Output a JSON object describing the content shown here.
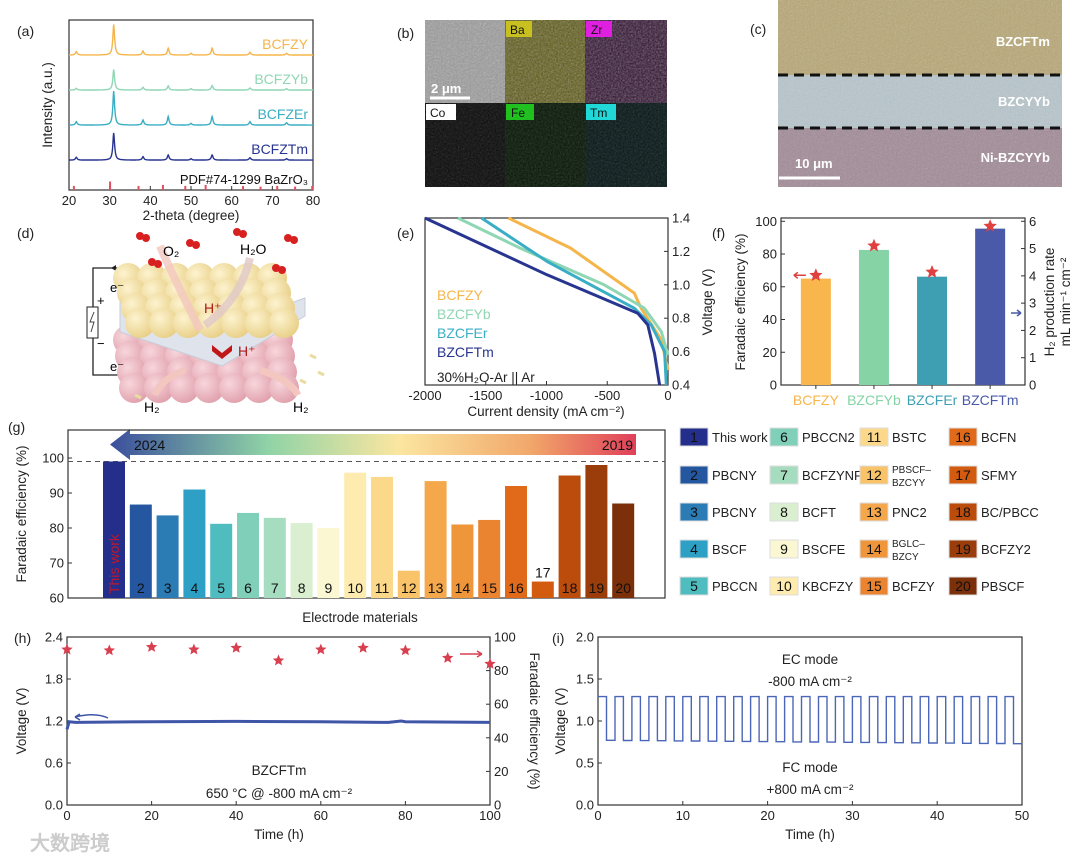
{
  "figure": {
    "panel_labels": {
      "a": "(a)",
      "b": "(b)",
      "c": "(c)",
      "d": "(d)",
      "e": "(e)",
      "f": "(f)",
      "g": "(g)",
      "h": "(h)",
      "i": "(i)"
    },
    "watermark": "大数跨境"
  },
  "panel_b": {
    "scale_bar": "2 μm",
    "maps": [
      {
        "label": "Ba",
        "color": "#c8c020"
      },
      {
        "label": "Zr",
        "color": "#e020e0"
      },
      {
        "label": "Co",
        "color": "#ffffff"
      },
      {
        "label": "Fe",
        "color": "#20c020"
      },
      {
        "label": "Tm",
        "color": "#20d8d8"
      }
    ]
  },
  "panel_c": {
    "layers": [
      "BZCFTm",
      "BZCYYb",
      "Ni-BZCYYb"
    ],
    "scale_bar": "10 μm"
  },
  "panel_d": {
    "labels": {
      "o2": "O₂",
      "h2o": "H₂O",
      "h_plus_top": "H⁺",
      "h_plus_bottom": "H⁺",
      "e_top": "e⁻",
      "e_bottom": "e⁻",
      "plus": "+",
      "minus": "−",
      "h2_left": "H₂",
      "h2_right": "H₂"
    }
  },
  "chart_data": [
    {
      "panel": "a",
      "type": "line",
      "xlabel": "2-theta (degree)",
      "ylabel": "Intensity (a.u.)",
      "xlim": [
        20,
        80
      ],
      "xticks": [
        20,
        30,
        40,
        50,
        60,
        70,
        80
      ],
      "peaks_2theta": [
        21.8,
        31.0,
        38.2,
        44.4,
        50.0,
        55.2,
        64.5,
        73.5
      ],
      "series": [
        {
          "name": "BCFZY",
          "color": "#f5b54a",
          "offset": 3.97,
          "relative_intensity": [
            0.1,
            0.9,
            0.12,
            0.2,
            0.05,
            0.2,
            0.08,
            0.05
          ]
        },
        {
          "name": "BCFZYb",
          "color": "#8fd6b4",
          "offset": 2.94,
          "relative_intensity": [
            0.05,
            0.6,
            0.08,
            0.12,
            0.04,
            0.13,
            0.06,
            0.04
          ]
        },
        {
          "name": "BCFZEr",
          "color": "#3aaec4",
          "offset": 1.91,
          "relative_intensity": [
            0.1,
            1.0,
            0.15,
            0.25,
            0.05,
            0.25,
            0.1,
            0.07
          ]
        },
        {
          "name": "BCFZTm",
          "color": "#283590",
          "offset": 0.88,
          "relative_intensity": [
            0.08,
            0.8,
            0.1,
            0.15,
            0.04,
            0.15,
            0.07,
            0.04
          ]
        }
      ],
      "reference": {
        "name": "PDF#74-1299 BaZrO₃",
        "color": "#e05060",
        "positions": [
          21.2,
          30.1,
          37.1,
          43.1,
          48.6,
          53.6,
          62.8,
          67.1,
          71.2,
          75.6,
          79.8
        ],
        "heights": [
          0.12,
          0.25,
          0.12,
          0.15,
          0.12,
          0.15,
          0.12,
          0.1,
          0.12,
          0.1,
          0.12
        ]
      }
    },
    {
      "panel": "e",
      "type": "line",
      "xlabel": "Current density (mA cm⁻²)",
      "ylabel": "Voltage (V)",
      "xlim": [
        -2000,
        0
      ],
      "ylim": [
        0.4,
        1.4
      ],
      "xticks": [
        -2000,
        -1500,
        -1000,
        -500,
        0
      ],
      "yticks": [
        0.4,
        0.6,
        0.8,
        1.0,
        1.2,
        1.4
      ],
      "annotation": "30%H₂O-Ar || Ar",
      "series": [
        {
          "name": "BCFZY",
          "color": "#f5b54a",
          "x": [
            -1314,
            -802,
            -277,
            -221,
            -55,
            0
          ],
          "y": [
            1.4,
            1.22,
            0.95,
            0.86,
            0.67,
            0.49
          ]
        },
        {
          "name": "BZCFYb",
          "color": "#8fd6b4",
          "x": [
            -1729,
            -1217,
            -526,
            -194,
            -55,
            0
          ],
          "y": [
            1.4,
            1.22,
            1.0,
            0.86,
            0.72,
            0.58
          ]
        },
        {
          "name": "BZCFEr",
          "color": "#3aaec4",
          "x": [
            -1535,
            -996,
            -277,
            -138,
            -28,
            -14
          ],
          "y": [
            1.4,
            1.14,
            0.86,
            0.76,
            0.6,
            0.4
          ]
        },
        {
          "name": "BZCFTm",
          "color": "#283590",
          "x": [
            -2000,
            -996,
            -249,
            -166,
            -111,
            -69
          ],
          "y": [
            1.4,
            1.06,
            0.83,
            0.76,
            0.59,
            0.4
          ]
        }
      ]
    },
    {
      "panel": "f",
      "type": "bar",
      "categories": [
        "BCFZY",
        "BZCFYb",
        "BZCFEr",
        "BZCFTm"
      ],
      "colors": [
        "#f8b64c",
        "#86d3a6",
        "#3e9fb3",
        "#4a5aa8"
      ],
      "bar_series": {
        "name": "H₂ production rate",
        "axis": "right",
        "values": [
          3.9,
          4.95,
          3.97,
          5.73
        ]
      },
      "star_series": {
        "name": "Faradaic efficiency",
        "axis": "left",
        "color": "#e04040",
        "values": [
          67,
          85,
          69,
          97
        ]
      },
      "ylabel": "Faradaic  efficiency (%)",
      "ylabel_right": [
        "H₂ production rate",
        "mL min⁻¹ cm⁻²"
      ],
      "ylim": [
        0,
        102
      ],
      "ylim_right": [
        0,
        6.12
      ],
      "yticks": [
        0,
        20,
        40,
        60,
        80,
        100
      ],
      "yticks_right": [
        0,
        1,
        2,
        3,
        4,
        5,
        6
      ]
    },
    {
      "panel": "g",
      "type": "bar",
      "xlabel": "Electrode materials",
      "ylabel": "Faradaic efficiency (%)",
      "ylim": [
        60,
        108
      ],
      "yticks": [
        60,
        70,
        80,
        90,
        100
      ],
      "reference_line": 99,
      "timeline": {
        "start": "2024",
        "end": "2019"
      },
      "this_work_label": "This work",
      "categories": [
        "1",
        "2",
        "3",
        "4",
        "5",
        "6",
        "7",
        "8",
        "9",
        "10",
        "11",
        "12",
        "13",
        "14",
        "15",
        "16",
        "17",
        "18",
        "19",
        "20"
      ],
      "values": [
        99,
        86.7,
        83.6,
        91,
        81.2,
        84.3,
        82.9,
        81.4,
        80,
        95.8,
        94.6,
        67.8,
        93.4,
        81,
        82.3,
        92,
        64.7,
        95,
        98,
        87
      ],
      "colors": [
        "#232f8a",
        "#2556a0",
        "#2b7bb4",
        "#2ea0c5",
        "#4fbcbf",
        "#7fcfb9",
        "#a6dcbf",
        "#d9efcf",
        "#fbf7d3",
        "#fdebaf",
        "#fcd98a",
        "#f9c36a",
        "#f4a84b",
        "#ef963b",
        "#ea8431",
        "#e06a1a",
        "#d35b10",
        "#bb4c0c",
        "#9a3d0a",
        "#7b3009"
      ],
      "legend": [
        "This work",
        "PBCNY",
        "PBCNY",
        "BSCF",
        "PBCCN",
        "PBCCN2",
        "BCFZYNF",
        "BCFT",
        "BSCFE",
        "KBCFZY",
        "BSTC",
        "PBSCF–BZCYY",
        "PNC2",
        "BGLC–BZCY",
        "BCFZY",
        "BCFN",
        "SFMY",
        "BC/PBCC",
        "BCFZY2",
        "PBSCF"
      ]
    },
    {
      "panel": "h",
      "type": "line",
      "xlabel": "Time (h)",
      "ylabel": "Voltage (V)",
      "ylabel_right": "Faradaic efficiency (%)",
      "xlim": [
        0,
        100
      ],
      "ylim": [
        0,
        2.4
      ],
      "ylim_right": [
        0,
        100
      ],
      "xticks": [
        0,
        20,
        40,
        60,
        80,
        100
      ],
      "yticks": [
        0.0,
        0.6,
        1.2,
        1.8,
        2.4
      ],
      "yticks_right": [
        0,
        20,
        40,
        60,
        80,
        100
      ],
      "annotation": [
        "BZCFTm",
        "650 °C @ -800 mA cm⁻²"
      ],
      "voltage_series": {
        "color": "#3f55a8",
        "x": [
          0,
          0.5,
          2,
          20,
          40,
          60,
          76,
          79,
          80,
          100
        ],
        "y": [
          1.08,
          1.19,
          1.18,
          1.19,
          1.195,
          1.19,
          1.18,
          1.2,
          1.19,
          1.18
        ]
      },
      "fe_series": {
        "color": "#d84050",
        "x": [
          0,
          10,
          20,
          30,
          40,
          50,
          60,
          70,
          80,
          90,
          100
        ],
        "y": [
          92.5,
          92,
          94,
          92.5,
          93.5,
          86,
          92.5,
          93.5,
          92,
          87.5,
          84
        ]
      }
    },
    {
      "panel": "i",
      "type": "line",
      "xlabel": "Time (h)",
      "ylabel": "Voltage (V)",
      "xlim": [
        0,
        50
      ],
      "ylim": [
        0,
        2.0
      ],
      "xticks": [
        0,
        10,
        20,
        30,
        40,
        50
      ],
      "yticks": [
        0.0,
        0.5,
        1.0,
        1.5,
        2.0
      ],
      "annotations": {
        "ec_mode": "EC mode",
        "ec_current": "-800 mA cm⁻²",
        "fc_mode": "FC mode",
        "fc_current": "+800 mA cm⁻²"
      },
      "series": {
        "color": "#4a66b8",
        "period_h": 2,
        "ec_voltage": 1.29,
        "fc_voltage_start": 0.77,
        "fc_voltage_end": 0.73,
        "cycles": 25
      }
    }
  ]
}
